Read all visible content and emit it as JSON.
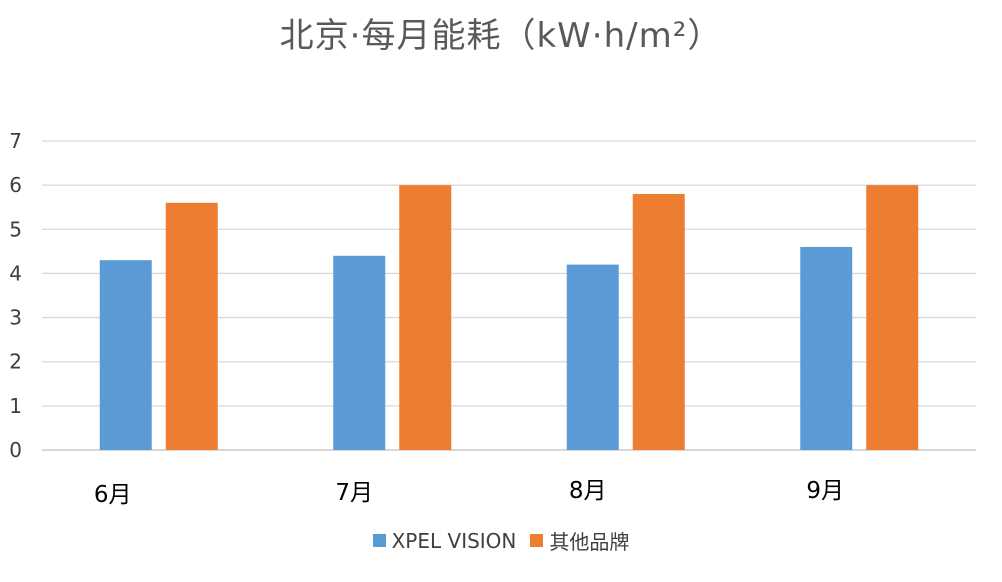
{
  "chart_data": {
    "type": "bar",
    "title": "北京·每月能耗（kW·h/m²）",
    "categories": [
      "6月",
      "7月",
      "8月",
      "9月"
    ],
    "series": [
      {
        "name": "XPEL VISION",
        "color": "#5B9BD5",
        "values": [
          4.3,
          4.4,
          4.2,
          4.6
        ]
      },
      {
        "name": "其他品牌",
        "color": "#ED7D31",
        "values": [
          5.6,
          6.0,
          5.8,
          6.0
        ]
      }
    ],
    "ylim": [
      0,
      7
    ],
    "yticks": [
      "0",
      "1",
      "2",
      "3",
      "4",
      "5",
      "6",
      "7"
    ],
    "grid": true,
    "legend_position": "bottom"
  }
}
